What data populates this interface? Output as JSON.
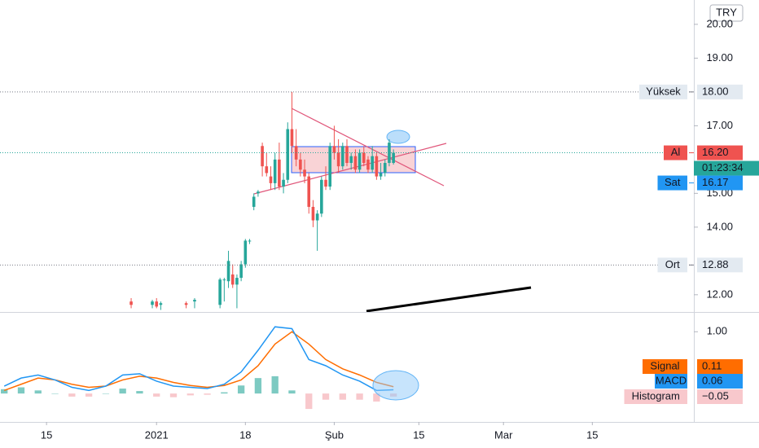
{
  "chart_data": [
    {
      "type": "candlestick",
      "currency": "TRY",
      "countdown": "01:23:34",
      "xlim": [
        -1,
        163
      ],
      "xticks": [
        {
          "value": 10,
          "label": "15"
        },
        {
          "value": 36,
          "label": "2021"
        },
        {
          "value": 57,
          "label": "18"
        },
        {
          "value": 78,
          "label": "Şub"
        },
        {
          "value": 98,
          "label": "15"
        },
        {
          "value": 118,
          "label": "Mar"
        },
        {
          "value": 139,
          "label": "15"
        }
      ],
      "ylim": [
        11.49,
        20.72
      ],
      "yticks": [
        {
          "value": 20,
          "label": "20.00"
        },
        {
          "value": 19,
          "label": "19.00"
        },
        {
          "value": 17,
          "label": "17.00"
        },
        {
          "value": 15,
          "label": "15.00"
        },
        {
          "value": 14,
          "label": "14.00"
        },
        {
          "value": 12,
          "label": "12.00"
        }
      ],
      "up_color": "#26a69a",
      "down_color": "#ef5350",
      "price": {
        "x": [
          30,
          35,
          36,
          37,
          43,
          45,
          51,
          52,
          53,
          54,
          55,
          56,
          57,
          58,
          59,
          60,
          61,
          62,
          63,
          64,
          65,
          66,
          67,
          68,
          69,
          70,
          71,
          72,
          73,
          74,
          75,
          76,
          77,
          78,
          79,
          80,
          81,
          82,
          83,
          84,
          85,
          86,
          87,
          88,
          89,
          90,
          91,
          92
        ],
        "ohlc": [
          [
            11.8,
            11.9,
            11.6,
            11.7
          ],
          [
            11.7,
            11.85,
            11.6,
            11.8
          ],
          [
            11.8,
            11.9,
            11.6,
            11.65
          ],
          [
            11.7,
            11.8,
            11.55,
            11.75
          ],
          [
            11.75,
            11.8,
            11.6,
            11.7
          ],
          [
            11.8,
            11.9,
            11.6,
            11.85
          ],
          [
            11.7,
            12.5,
            11.6,
            12.45
          ],
          [
            12.45,
            12.5,
            11.8,
            12.45
          ],
          [
            12.4,
            13.3,
            12.2,
            13
          ],
          [
            12.6,
            12.9,
            12.2,
            12.3
          ],
          [
            12.3,
            12.6,
            11.6,
            12.5
          ],
          [
            12.5,
            13,
            12.4,
            12.9
          ],
          [
            12.9,
            13.65,
            12.8,
            13.6
          ],
          [
            13.6,
            13.65,
            13.5,
            13.6
          ],
          [
            14.6,
            15,
            14.5,
            14.9
          ],
          [
            15,
            15.1,
            14.9,
            15.05
          ],
          [
            16.4,
            16.5,
            15.5,
            15.8
          ],
          [
            15.8,
            16.2,
            15.5,
            15.6
          ],
          [
            15.5,
            15.8,
            15.1,
            15.3
          ],
          [
            15.3,
            16.2,
            15.1,
            16
          ],
          [
            16,
            16.5,
            15.1,
            15.2
          ],
          [
            15.2,
            15.6,
            15,
            15.4
          ],
          [
            15.4,
            17.1,
            15.3,
            16.9
          ],
          [
            16.9,
            18,
            16.2,
            16.4
          ],
          [
            16.4,
            16.9,
            15.8,
            16
          ],
          [
            16,
            16.2,
            15.5,
            15.7
          ],
          [
            15.7,
            16,
            15.3,
            15.5
          ],
          [
            15.5,
            15.6,
            14.4,
            14.6
          ],
          [
            14.6,
            14.8,
            14,
            14.2
          ],
          [
            14.2,
            14.5,
            13.3,
            14.4
          ],
          [
            14.4,
            15.5,
            14.3,
            15.4
          ],
          [
            15.4,
            15.8,
            15.1,
            15.2
          ],
          [
            15.2,
            16.5,
            15.1,
            16.4
          ],
          [
            16.4,
            17,
            16,
            16.2
          ],
          [
            16.2,
            16.6,
            15.6,
            15.8
          ],
          [
            15.8,
            16.5,
            15.7,
            16.4
          ],
          [
            16.4,
            16.6,
            15.8,
            15.9
          ],
          [
            15.9,
            16.2,
            15.7,
            16.1
          ],
          [
            16.1,
            16.3,
            15.6,
            15.7
          ],
          [
            15.7,
            16.3,
            15.6,
            16.2
          ],
          [
            16.2,
            16.4,
            15.8,
            15.9
          ],
          [
            16,
            16.1,
            15.6,
            15.7
          ],
          [
            15.7,
            16.4,
            15.6,
            16.1
          ],
          [
            16.1,
            16.2,
            15.4,
            15.5
          ],
          [
            15.5,
            15.9,
            15.4,
            15.6
          ],
          [
            15.6,
            16,
            15.5,
            15.9
          ],
          [
            15.9,
            16.6,
            15.8,
            16.5
          ],
          [
            15.9,
            16.3,
            15.85,
            16.2
          ]
        ]
      },
      "levels": [
        {
          "name": "Yüksek",
          "value": 18,
          "label": "18.00",
          "color": "#e3eaf1",
          "line": "#787b86"
        },
        {
          "name": "Al",
          "value": 16.2,
          "label": "16.20",
          "color": "#ef5350",
          "line": "#26a69a"
        },
        {
          "name": "Sat",
          "value": 16.17,
          "label": "16.17",
          "color": "#2196f3"
        },
        {
          "name": "Ort",
          "value": 12.88,
          "label": "12.88",
          "color": "#e3eaf1",
          "line": "#787b86"
        }
      ]
    },
    {
      "type": "macd",
      "ylim": [
        -0.46,
        1.32
      ],
      "yticks": [
        {
          "value": 1,
          "label": "1.00"
        }
      ],
      "x": [
        0,
        4,
        8,
        12,
        16,
        20,
        24,
        28,
        32,
        36,
        40,
        44,
        48,
        52,
        56,
        60,
        64,
        68,
        72,
        76,
        80,
        84,
        88,
        92
      ],
      "series": [
        {
          "name": "Signal",
          "color": "#ff6d00",
          "values": [
            0.05,
            0.15,
            0.25,
            0.22,
            0.15,
            0.1,
            0.12,
            0.22,
            0.28,
            0.25,
            0.18,
            0.13,
            0.1,
            0.13,
            0.22,
            0.45,
            0.8,
            1,
            0.8,
            0.55,
            0.4,
            0.3,
            0.18,
            0.11
          ],
          "value_label": "0.11"
        },
        {
          "name": "MACD",
          "color": "#2196f3",
          "values": [
            0.12,
            0.25,
            0.3,
            0.22,
            0.1,
            0.05,
            0.12,
            0.3,
            0.32,
            0.2,
            0.12,
            0.1,
            0.08,
            0.15,
            0.35,
            0.7,
            1.08,
            1.05,
            0.55,
            0.45,
            0.3,
            0.2,
            0.05,
            0.06
          ],
          "value_label": "0.06"
        },
        {
          "name": "Histogram",
          "color": "#f8c8cc",
          "values": [
            0.07,
            0.1,
            0.05,
            0,
            -0.05,
            -0.05,
            0,
            0.08,
            0.04,
            -0.05,
            -0.06,
            -0.03,
            -0.02,
            0.02,
            0.13,
            0.25,
            0.28,
            0.05,
            -0.25,
            -0.1,
            -0.1,
            -0.1,
            -0.13,
            -0.05
          ],
          "value_label": "−0.05"
        }
      ]
    }
  ]
}
